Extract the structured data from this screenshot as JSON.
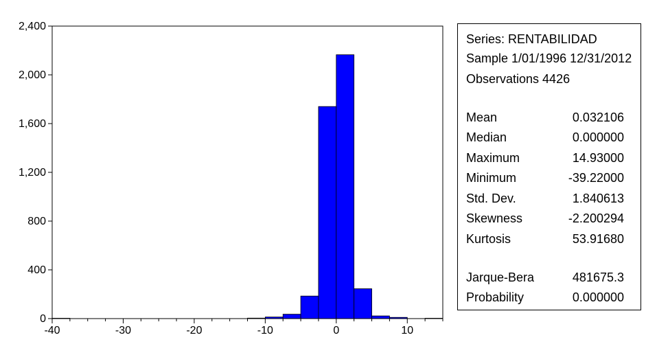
{
  "chart_data": {
    "type": "bar",
    "bin_width": 2.5,
    "x_ticks": [
      -40,
      -30,
      -20,
      -10,
      0,
      10
    ],
    "x_tick_labels": [
      "-40",
      "-30",
      "-20",
      "-10",
      "0",
      "10"
    ],
    "y_ticks": [
      0,
      400,
      800,
      1200,
      1600,
      2000,
      2400
    ],
    "y_tick_labels": [
      "0",
      "400",
      "800",
      "1,200",
      "1,600",
      "2,000",
      "2,400"
    ],
    "xlim": [
      -40,
      15
    ],
    "ylim": [
      0,
      2400
    ],
    "bins": [
      {
        "x0": -40,
        "x1": -37.5,
        "count": 3
      },
      {
        "x0": -37.5,
        "x1": -35,
        "count": 0
      },
      {
        "x0": -35,
        "x1": -32.5,
        "count": 0
      },
      {
        "x0": -32.5,
        "x1": -30,
        "count": 0
      },
      {
        "x0": -30,
        "x1": -27.5,
        "count": 0
      },
      {
        "x0": -27.5,
        "x1": -25,
        "count": 0
      },
      {
        "x0": -25,
        "x1": -22.5,
        "count": 0
      },
      {
        "x0": -22.5,
        "x1": -20,
        "count": 0
      },
      {
        "x0": -20,
        "x1": -17.5,
        "count": 0
      },
      {
        "x0": -17.5,
        "x1": -15,
        "count": 0
      },
      {
        "x0": -15,
        "x1": -12.5,
        "count": 0
      },
      {
        "x0": -12.5,
        "x1": -10,
        "count": 4
      },
      {
        "x0": -10,
        "x1": -7.5,
        "count": 13
      },
      {
        "x0": -7.5,
        "x1": -5,
        "count": 36
      },
      {
        "x0": -5,
        "x1": -2.5,
        "count": 185
      },
      {
        "x0": -2.5,
        "x1": 0,
        "count": 1740
      },
      {
        "x0": 0,
        "x1": 2.5,
        "count": 2165
      },
      {
        "x0": 2.5,
        "x1": 5,
        "count": 245
      },
      {
        "x0": 5,
        "x1": 7.5,
        "count": 22
      },
      {
        "x0": 7.5,
        "x1": 10,
        "count": 10
      },
      {
        "x0": 10,
        "x1": 12.5,
        "count": 0
      },
      {
        "x0": 12.5,
        "x1": 15,
        "count": 3
      }
    ],
    "bar_color": "#0000ff",
    "bar_edge_color": "#000000",
    "grid": false,
    "title": "",
    "xlabel": "",
    "ylabel": ""
  },
  "stats": {
    "series": "Series: RENTABILIDAD",
    "sample": "Sample 1/01/1996 12/31/2012",
    "observations": "Observations 4426",
    "rows": [
      {
        "label": "Mean",
        "value": "0.032106"
      },
      {
        "label": "Median",
        "value": "0.000000"
      },
      {
        "label": "Maximum",
        "value": "14.93000"
      },
      {
        "label": "Minimum",
        "value": "-39.22000"
      },
      {
        "label": "Std. Dev.",
        "value": "1.840613"
      },
      {
        "label": "Skewness",
        "value": "-2.200294"
      },
      {
        "label": "Kurtosis",
        "value": "53.91680"
      }
    ],
    "test_rows": [
      {
        "label": "Jarque-Bera",
        "value": "481675.3"
      },
      {
        "label": "Probability",
        "value": "0.000000"
      }
    ]
  }
}
